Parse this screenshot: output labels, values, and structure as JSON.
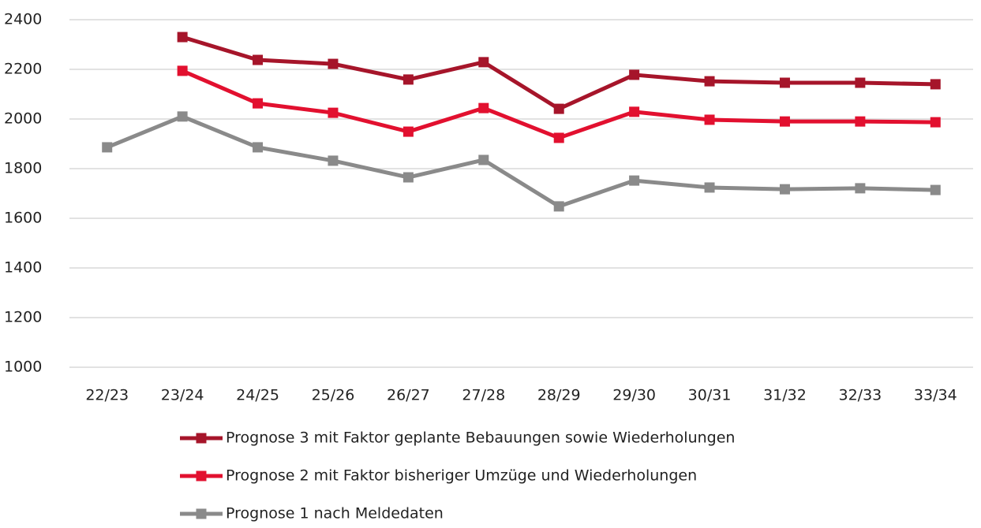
{
  "chart_data": {
    "type": "line",
    "categories": [
      "22/23",
      "23/24",
      "24/25",
      "25/26",
      "26/27",
      "27/28",
      "28/29",
      "29/30",
      "30/31",
      "31/32",
      "32/33",
      "33/34"
    ],
    "series": [
      {
        "name": "Prognose 3 mit Faktor geplante Bebauungen sowie Wiederholungen",
        "color": "#a6152a",
        "values": [
          null,
          2330,
          2238,
          2222,
          2159,
          2229,
          2041,
          2178,
          2152,
          2146,
          2146,
          2140
        ]
      },
      {
        "name": "Prognose 2 mit Faktor bisheriger Umzüge und Wiederholungen",
        "color": "#e2102f",
        "values": [
          null,
          2194,
          2063,
          2025,
          1949,
          2044,
          1924,
          2029,
          1997,
          1990,
          1990,
          1987
        ]
      },
      {
        "name": "Prognose 1 nach Meldedaten",
        "color": "#8a8a8a",
        "values": [
          1886,
          2010,
          1886,
          1832,
          1765,
          1835,
          1648,
          1752,
          1724,
          1717,
          1721,
          1714
        ]
      }
    ],
    "ylim": [
      1000,
      2400
    ],
    "yticks": [
      1000,
      1200,
      1400,
      1600,
      1800,
      2000,
      2200,
      2400
    ],
    "grid": true,
    "legend": "bottom"
  }
}
